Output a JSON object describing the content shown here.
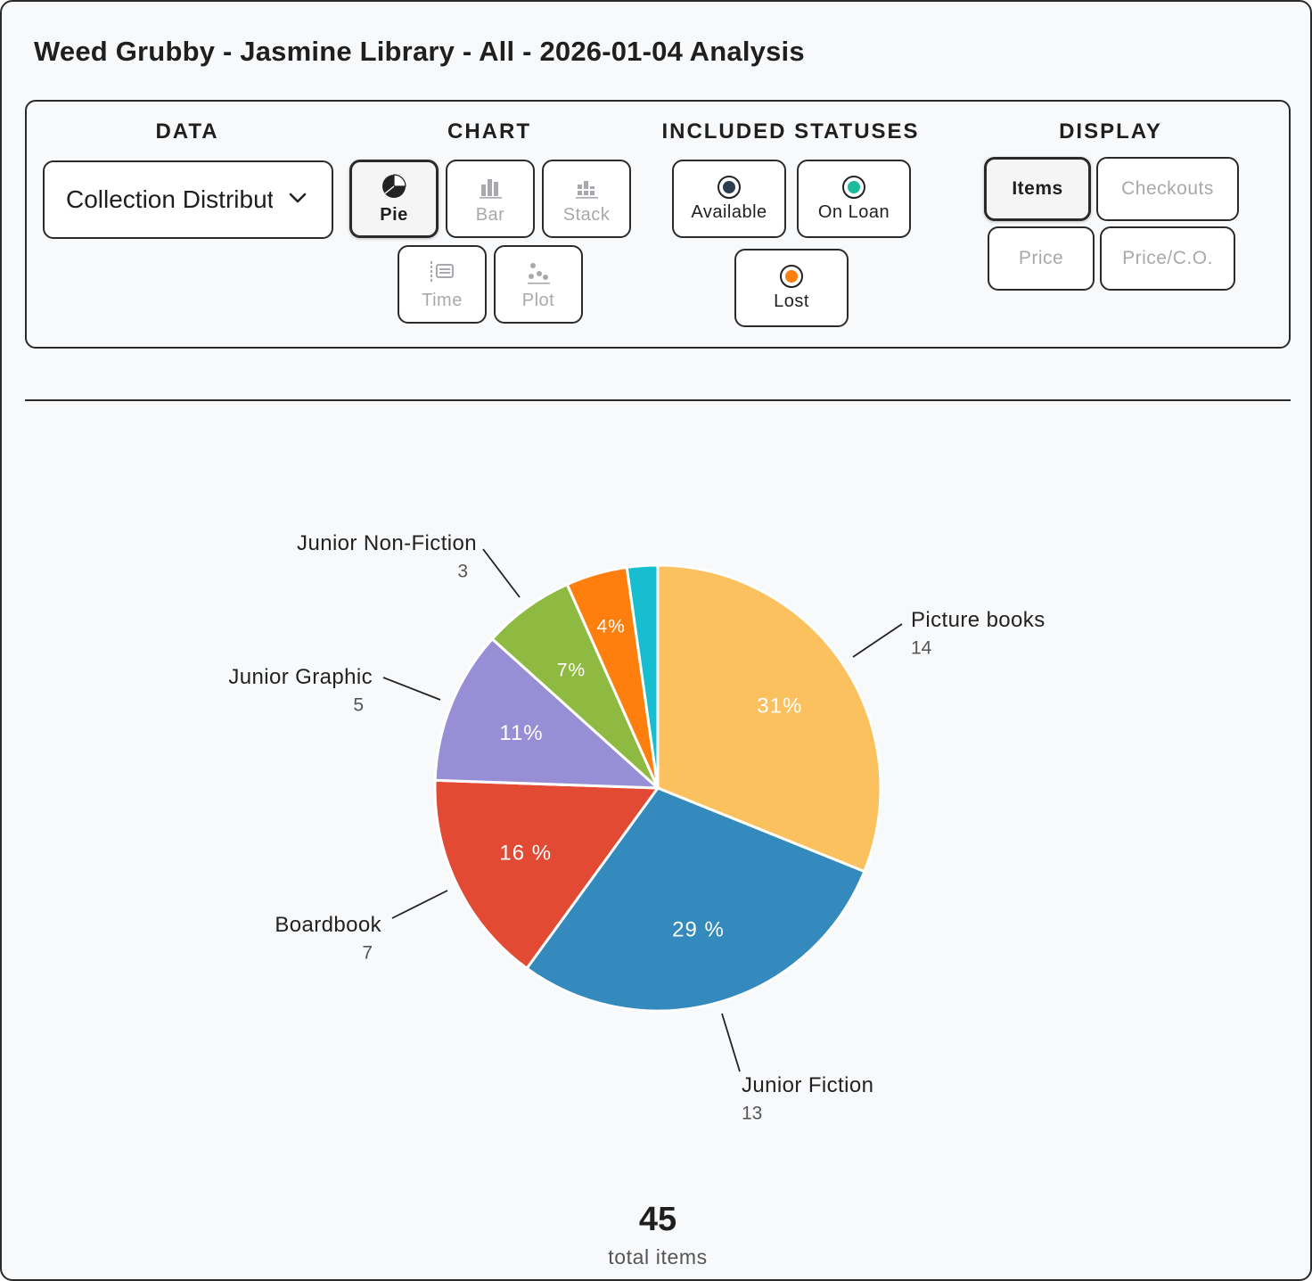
{
  "header": {
    "title": "Weed Grubby - Jasmine Library - All - 2026-01-04 Analysis"
  },
  "controls": {
    "data": {
      "label": "DATA",
      "selected": "Collection Distribution"
    },
    "chart": {
      "label": "CHART",
      "options": [
        {
          "label": "Pie",
          "icon": "pie-chart-icon",
          "active": true
        },
        {
          "label": "Bar",
          "icon": "bar-chart-icon",
          "active": false
        },
        {
          "label": "Stack",
          "icon": "stacked-chart-icon",
          "active": false
        },
        {
          "label": "Time",
          "icon": "timeline-icon",
          "active": false
        },
        {
          "label": "Plot",
          "icon": "scatter-plot-icon",
          "active": false
        }
      ]
    },
    "statuses": {
      "label": "INCLUDED STATUSES",
      "options": [
        {
          "label": "Available",
          "color": "#2c3e50",
          "checked": true
        },
        {
          "label": "On Loan",
          "color": "#1abc9c",
          "checked": true
        },
        {
          "label": "Lost",
          "color": "#ff7f0e",
          "checked": true
        }
      ]
    },
    "display": {
      "label": "DISPLAY",
      "options": [
        {
          "label": "Items",
          "active": true
        },
        {
          "label": "Checkouts",
          "active": false
        },
        {
          "label": "Price",
          "active": false
        },
        {
          "label": "Price/C.O.",
          "active": false
        }
      ]
    }
  },
  "chart_data": {
    "type": "pie",
    "total": 45,
    "slices": [
      {
        "label": "Picture books",
        "value": 14,
        "percent": "31%",
        "color": "#fbc15e"
      },
      {
        "label": "Junior Fiction",
        "value": 13,
        "percent": "29 %",
        "color": "#348abd"
      },
      {
        "label": "Boardbook",
        "value": 7,
        "percent": "16 %",
        "color": "#e24a33"
      },
      {
        "label": "Junior Graphic",
        "value": 5,
        "percent": "11%",
        "color": "#988ed5"
      },
      {
        "label": "Junior Non-Fiction",
        "value": 3,
        "percent": "7%",
        "color": "#8eba42"
      },
      {
        "label": "",
        "value": 2,
        "percent": "4%",
        "color": "#ff7f0e"
      },
      {
        "label": "",
        "value": 1,
        "percent": "",
        "color": "#17becf"
      }
    ]
  },
  "summary": {
    "total": "45",
    "total_label": "total items"
  }
}
